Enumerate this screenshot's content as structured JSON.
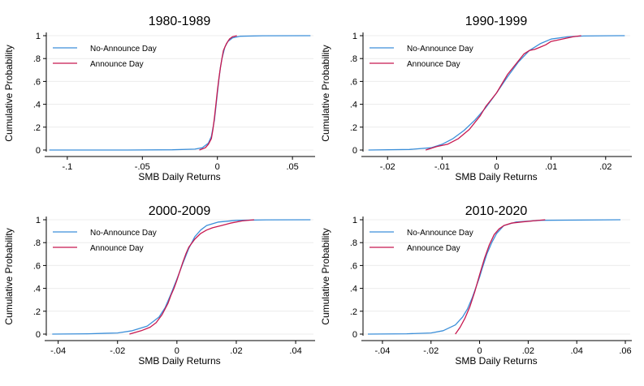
{
  "colors": {
    "no_announce": "#3c8fd9",
    "announce": "#c8184f"
  },
  "chart_data": [
    {
      "type": "line",
      "title": "1980-1989",
      "xlabel": "SMB Daily Returns",
      "ylabel": "Cumulative Probability",
      "xlim": [
        -0.114,
        0.064
      ],
      "ylim": [
        0,
        1
      ],
      "xticks": [
        -0.1,
        -0.05,
        0,
        0.05
      ],
      "xtick_labels": [
        "-.1",
        "-.05",
        "0",
        ".05"
      ],
      "yticks": [
        0,
        0.2,
        0.4,
        0.6,
        0.8,
        1
      ],
      "ytick_labels": [
        "0",
        ".2",
        ".4",
        ".6",
        ".8",
        "1"
      ],
      "legend_position": "top-left",
      "series": [
        {
          "name": "No-Announce Day",
          "color": "#3c8fd9",
          "x": [
            -0.112,
            -0.06,
            -0.03,
            -0.015,
            -0.01,
            -0.006,
            -0.004,
            -0.002,
            -0.001,
            0,
            0.001,
            0.002,
            0.003,
            0.005,
            0.007,
            0.01,
            0.015,
            0.03,
            0.062
          ],
          "y": [
            0,
            0,
            0.002,
            0.008,
            0.02,
            0.06,
            0.12,
            0.26,
            0.38,
            0.5,
            0.62,
            0.72,
            0.8,
            0.9,
            0.95,
            0.98,
            0.995,
            0.999,
            1
          ]
        },
        {
          "name": "Announce Day",
          "color": "#c8184f",
          "x": [
            -0.012,
            -0.008,
            -0.006,
            -0.004,
            -0.003,
            -0.002,
            -0.001,
            0,
            0.001,
            0.002,
            0.003,
            0.004,
            0.006,
            0.008,
            0.01,
            0.013
          ],
          "y": [
            0,
            0.02,
            0.05,
            0.1,
            0.18,
            0.28,
            0.4,
            0.52,
            0.63,
            0.72,
            0.8,
            0.87,
            0.93,
            0.97,
            0.99,
            1
          ]
        }
      ]
    },
    {
      "type": "line",
      "title": "1990-1999",
      "xlabel": "SMB Daily Returns",
      "ylabel": "Cumulative Probability",
      "xlim": [
        -0.0245,
        0.0245
      ],
      "ylim": [
        0,
        1
      ],
      "xticks": [
        -0.02,
        -0.01,
        0,
        0.01,
        0.02
      ],
      "xtick_labels": [
        "-.02",
        "-.01",
        "0",
        ".01",
        ".02"
      ],
      "yticks": [
        0,
        0.2,
        0.4,
        0.6,
        0.8,
        1
      ],
      "ytick_labels": [
        "0",
        ".2",
        ".4",
        ".6",
        ".8",
        "1"
      ],
      "legend_position": "top-left",
      "series": [
        {
          "name": "No-Announce Day",
          "color": "#3c8fd9",
          "x": [
            -0.0235,
            -0.016,
            -0.012,
            -0.01,
            -0.008,
            -0.006,
            -0.004,
            -0.002,
            0,
            0.002,
            0.004,
            0.006,
            0.008,
            0.01,
            0.013,
            0.016,
            0.02,
            0.0235
          ],
          "y": [
            0,
            0.005,
            0.02,
            0.05,
            0.1,
            0.17,
            0.26,
            0.37,
            0.5,
            0.64,
            0.77,
            0.87,
            0.93,
            0.97,
            0.99,
            0.997,
            0.999,
            1
          ]
        },
        {
          "name": "Announce Day",
          "color": "#c8184f",
          "x": [
            -0.013,
            -0.011,
            -0.009,
            -0.007,
            -0.005,
            -0.003,
            -0.002,
            -0.001,
            0,
            0.001,
            0.002,
            0.003,
            0.004,
            0.005,
            0.006,
            0.007,
            0.008,
            0.009,
            0.01,
            0.012,
            0.014,
            0.0155
          ],
          "y": [
            0,
            0.03,
            0.05,
            0.1,
            0.18,
            0.3,
            0.38,
            0.44,
            0.5,
            0.58,
            0.66,
            0.72,
            0.78,
            0.84,
            0.87,
            0.88,
            0.9,
            0.92,
            0.95,
            0.97,
            0.99,
            1
          ]
        }
      ]
    },
    {
      "type": "line",
      "title": "2000-2009",
      "xlabel": "SMB Daily Returns",
      "ylabel": "Cumulative Probability",
      "xlim": [
        -0.044,
        0.046
      ],
      "ylim": [
        0,
        1
      ],
      "xticks": [
        -0.04,
        -0.02,
        0,
        0.02,
        0.04
      ],
      "xtick_labels": [
        "-.04",
        "-.02",
        "0",
        ".02",
        ".04"
      ],
      "yticks": [
        0,
        0.2,
        0.4,
        0.6,
        0.8,
        1
      ],
      "ytick_labels": [
        "0",
        ".2",
        ".4",
        ".6",
        ".8",
        "1"
      ],
      "legend_position": "top-left",
      "series": [
        {
          "name": "No-Announce Day",
          "color": "#3c8fd9",
          "x": [
            -0.042,
            -0.03,
            -0.02,
            -0.015,
            -0.01,
            -0.006,
            -0.004,
            -0.002,
            0,
            0.002,
            0.004,
            0.006,
            0.008,
            0.01,
            0.014,
            0.02,
            0.03,
            0.045
          ],
          "y": [
            0,
            0.003,
            0.01,
            0.03,
            0.07,
            0.15,
            0.23,
            0.35,
            0.48,
            0.62,
            0.75,
            0.85,
            0.91,
            0.95,
            0.98,
            0.995,
            0.999,
            1
          ]
        },
        {
          "name": "Announce Day",
          "color": "#c8184f",
          "x": [
            -0.016,
            -0.012,
            -0.009,
            -0.007,
            -0.005,
            -0.003,
            -0.002,
            -0.001,
            0,
            0.001,
            0.002,
            0.003,
            0.004,
            0.006,
            0.008,
            0.01,
            0.012,
            0.015,
            0.018,
            0.022,
            0.026
          ],
          "y": [
            0,
            0.03,
            0.06,
            0.1,
            0.17,
            0.27,
            0.34,
            0.4,
            0.47,
            0.55,
            0.63,
            0.7,
            0.76,
            0.83,
            0.88,
            0.91,
            0.93,
            0.95,
            0.97,
            0.99,
            1
          ]
        }
      ]
    },
    {
      "type": "line",
      "title": "2010-2020",
      "xlabel": "SMB Daily Returns",
      "ylabel": "Cumulative Probability",
      "xlim": [
        -0.048,
        0.062
      ],
      "ylim": [
        0,
        1
      ],
      "xticks": [
        -0.04,
        -0.02,
        0,
        0.02,
        0.04,
        0.06
      ],
      "xtick_labels": [
        "-.04",
        "-.02",
        "0",
        ".02",
        ".04",
        ".06"
      ],
      "yticks": [
        0,
        0.2,
        0.4,
        0.6,
        0.8,
        1
      ],
      "ytick_labels": [
        "0",
        ".2",
        ".4",
        ".6",
        ".8",
        "1"
      ],
      "legend_position": "top-left",
      "series": [
        {
          "name": "No-Announce Day",
          "color": "#3c8fd9",
          "x": [
            -0.046,
            -0.03,
            -0.02,
            -0.015,
            -0.01,
            -0.007,
            -0.005,
            -0.003,
            -0.001,
            0,
            0.001,
            0.003,
            0.005,
            0.007,
            0.01,
            0.015,
            0.025,
            0.058
          ],
          "y": [
            0,
            0.003,
            0.01,
            0.03,
            0.08,
            0.15,
            0.22,
            0.32,
            0.44,
            0.5,
            0.57,
            0.7,
            0.8,
            0.88,
            0.95,
            0.98,
            0.995,
            1
          ]
        },
        {
          "name": "Announce Day",
          "color": "#c8184f",
          "x": [
            -0.01,
            -0.008,
            -0.006,
            -0.004,
            -0.002,
            0,
            0.002,
            0.004,
            0.006,
            0.008,
            0.01,
            0.013,
            0.017,
            0.022,
            0.027
          ],
          "y": [
            0,
            0.06,
            0.14,
            0.24,
            0.37,
            0.52,
            0.66,
            0.78,
            0.87,
            0.92,
            0.95,
            0.97,
            0.98,
            0.99,
            1
          ]
        }
      ]
    }
  ]
}
